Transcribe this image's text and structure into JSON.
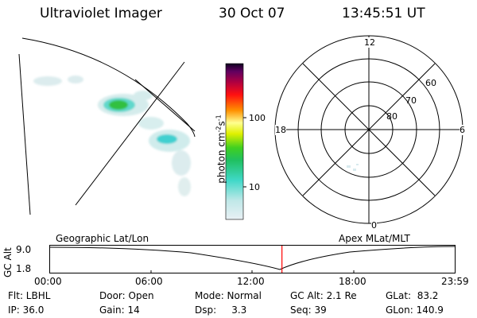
{
  "header": {
    "title": "Ultraviolet Imager",
    "date": "30 Oct 07",
    "time": "13:45:51 UT"
  },
  "colorbar": {
    "unit_label": "photon cm",
    "unit_exp1": "-2",
    "unit_s": "s",
    "unit_exp2": "-1",
    "ticks": [
      "100",
      "10"
    ]
  },
  "polar_plot": {
    "mlt_labels": {
      "top": "12",
      "left": "18",
      "right": "6",
      "bottom": "0"
    },
    "lat_labels": [
      "60",
      "70",
      "80"
    ]
  },
  "orbit_panel": {
    "left_label": "Geographic Lat/Lon",
    "right_label": "Apex MLat/MLT",
    "axis_label": "GC Alt",
    "alt_max": "9.0",
    "alt_min": "1.8",
    "time_ticks": [
      "00:00",
      "06:00",
      "12:00",
      "18:00",
      "23:59"
    ],
    "current_fraction": 0.573
  },
  "status": {
    "filter": "Flt: LBHL",
    "door": "Door: Open",
    "mode": "Mode: Normal",
    "gc_alt": "GC Alt: 2.1 Re",
    "glat": "GLat:  83.2",
    "ip": "IP: 36.0",
    "gain": "Gain: 14",
    "dsp": "Dsp:     3.3",
    "seq": "Seq: 39",
    "glon": "GLon: 140.9"
  },
  "colors": {
    "marker": "#ff0000",
    "aurora_weak": "#d8ecec",
    "aurora_mid": "#40d8d0",
    "aurora_strong": "#30c030"
  }
}
